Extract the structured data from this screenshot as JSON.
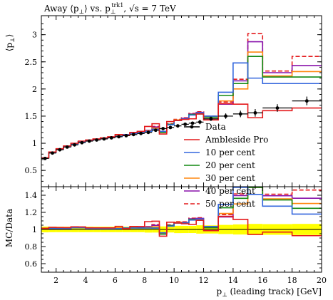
{
  "chart_data": [
    {
      "type": "line",
      "panel": "main",
      "title": "Away ⟨p⊥⟩ vs. p⊥trk1, √s = 7 TeV",
      "title_parts": {
        "prefix": "Away ⟨p",
        "mid": "⟩ vs. p",
        "sup": "trk1",
        "suffix": ", √s = 7 TeV",
        "perp": "⊥"
      },
      "ylabel": "⟨p⊥⟩",
      "ylabel_parts": {
        "a": "⟨p",
        "b": "⊥",
        "c": "⟩"
      },
      "xlim": [
        1,
        20
      ],
      "ylim": [
        0.2,
        3.35
      ],
      "xticks": [
        2,
        4,
        6,
        8,
        10,
        12,
        14,
        16,
        18,
        20
      ],
      "yticks": [
        0.5,
        1,
        1.5,
        2,
        2.5,
        3
      ],
      "ytick_labels": [
        "0.5",
        "1",
        "1.5",
        "2",
        "2.5",
        "3"
      ],
      "legend_position": "lower-right",
      "legend": [
        "Data",
        "Ambleside Pro",
        "10 per cent",
        "20 per cent",
        "30 per cent",
        "40 per cent",
        "50 per cent"
      ],
      "data": {
        "name": "Data",
        "color": "#000000",
        "bin_edges": [
          1.0,
          1.5,
          2.0,
          2.5,
          3.0,
          3.5,
          4.0,
          4.5,
          5.0,
          5.5,
          6.0,
          6.5,
          7.0,
          7.5,
          8.0,
          8.5,
          9.0,
          9.5,
          10.0,
          10.5,
          11.0,
          11.5,
          12.0,
          13.0,
          14.0,
          15.0,
          16.0,
          18.0,
          20.0
        ],
        "x": [
          1.25,
          1.75,
          2.25,
          2.75,
          3.25,
          3.75,
          4.25,
          4.75,
          5.25,
          5.75,
          6.25,
          6.75,
          7.25,
          7.75,
          8.25,
          8.75,
          9.25,
          9.75,
          10.25,
          10.75,
          11.25,
          11.75,
          12.5,
          13.5,
          14.5,
          15.5,
          17.0,
          19.0
        ],
        "y": [
          0.72,
          0.82,
          0.88,
          0.93,
          0.97,
          1.01,
          1.04,
          1.06,
          1.08,
          1.1,
          1.12,
          1.14,
          1.16,
          1.18,
          1.2,
          1.24,
          1.27,
          1.29,
          1.32,
          1.35,
          1.37,
          1.39,
          1.45,
          1.5,
          1.54,
          1.56,
          1.65,
          1.78
        ],
        "yerr": [
          0.01,
          0.01,
          0.01,
          0.01,
          0.01,
          0.01,
          0.01,
          0.01,
          0.01,
          0.01,
          0.01,
          0.01,
          0.01,
          0.01,
          0.02,
          0.02,
          0.02,
          0.02,
          0.03,
          0.03,
          0.03,
          0.04,
          0.04,
          0.05,
          0.06,
          0.07,
          0.07,
          0.08
        ]
      },
      "series": [
        {
          "name": "Ambleside Pro",
          "color": "#e41a1c",
          "dash": false,
          "values": [
            0.73,
            0.84,
            0.9,
            0.95,
            1.0,
            1.04,
            1.06,
            1.08,
            1.1,
            1.12,
            1.16,
            1.15,
            1.2,
            1.22,
            1.31,
            1.36,
            1.17,
            1.4,
            1.42,
            1.44,
            1.45,
            1.54,
            1.43,
            1.73,
            1.72,
            1.47,
            1.6,
            1.65
          ]
        },
        {
          "name": "10 per cent",
          "color": "#3366dd",
          "dash": false,
          "values": [
            0.73,
            0.83,
            0.89,
            0.94,
            0.99,
            1.03,
            1.05,
            1.07,
            1.09,
            1.11,
            1.13,
            1.16,
            1.18,
            1.2,
            1.22,
            1.26,
            1.22,
            1.34,
            1.42,
            1.45,
            1.52,
            1.56,
            1.5,
            1.94,
            2.48,
            2.2,
            2.1,
            2.1
          ]
        },
        {
          "name": "20 per cent",
          "color": "#118811",
          "dash": false,
          "values": [
            0.73,
            0.83,
            0.89,
            0.94,
            0.99,
            1.03,
            1.05,
            1.07,
            1.09,
            1.11,
            1.13,
            1.16,
            1.18,
            1.2,
            1.22,
            1.26,
            1.2,
            1.35,
            1.42,
            1.45,
            1.53,
            1.54,
            1.48,
            1.88,
            2.1,
            2.6,
            2.22,
            2.22
          ]
        },
        {
          "name": "30 per cent",
          "color": "#ff8811",
          "dash": false,
          "values": [
            0.73,
            0.83,
            0.89,
            0.94,
            0.99,
            1.03,
            1.05,
            1.07,
            1.09,
            1.11,
            1.14,
            1.16,
            1.19,
            1.2,
            1.23,
            1.28,
            1.21,
            1.34,
            1.43,
            1.45,
            1.53,
            1.56,
            1.48,
            1.78,
            2.0,
            2.68,
            2.24,
            2.32
          ]
        },
        {
          "name": "40 per cent",
          "color": "#8811aa",
          "dash": false,
          "values": [
            0.73,
            0.83,
            0.89,
            0.94,
            0.99,
            1.03,
            1.05,
            1.07,
            1.09,
            1.11,
            1.14,
            1.16,
            1.19,
            1.21,
            1.24,
            1.3,
            1.21,
            1.35,
            1.43,
            1.46,
            1.54,
            1.57,
            1.49,
            1.72,
            2.15,
            2.87,
            2.3,
            2.43
          ]
        },
        {
          "name": "50 per cent",
          "color": "#e41a1c",
          "dash": true,
          "values": [
            0.73,
            0.83,
            0.89,
            0.94,
            0.99,
            1.03,
            1.05,
            1.07,
            1.09,
            1.11,
            1.14,
            1.16,
            1.19,
            1.21,
            1.24,
            1.31,
            1.22,
            1.36,
            1.44,
            1.47,
            1.55,
            1.58,
            1.5,
            1.76,
            2.18,
            3.02,
            2.33,
            2.6
          ]
        }
      ]
    },
    {
      "type": "line",
      "panel": "ratio",
      "ylabel": "MC/Data",
      "xlabel": "p⊥ (leading track) [GeV]",
      "xlabel_parts": {
        "a": "p",
        "b": "⊥",
        "c": " (leading track) [GeV]"
      },
      "xlim": [
        1,
        20
      ],
      "ylim": [
        0.5,
        1.5
      ],
      "xticks": [
        2,
        4,
        6,
        8,
        10,
        12,
        14,
        16,
        18,
        20
      ],
      "xtick_labels": [
        "2",
        "4",
        "6",
        "8",
        "10",
        "12",
        "14",
        "16",
        "18",
        "20"
      ],
      "yticks": [
        0.6,
        0.8,
        1.0,
        1.2,
        1.4
      ],
      "ytick_labels": [
        "0.6",
        "0.8",
        "1",
        "1.2",
        "1.4"
      ],
      "band_color": "#ffff00",
      "band_note": "data uncertainty band around 1"
    }
  ]
}
